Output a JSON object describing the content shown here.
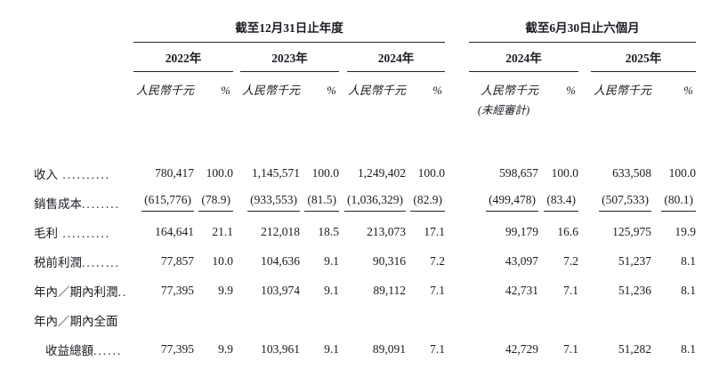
{
  "table": {
    "groups": [
      {
        "title": "截至12月31日止年度",
        "year_count": 3
      },
      {
        "title": "截至6月30日止六個月",
        "year_count": 2
      }
    ],
    "years": [
      "2022年",
      "2023年",
      "2024年",
      "2024年",
      "2025年"
    ],
    "subheaders": {
      "amount": "人民幣千元",
      "percent": "%"
    },
    "unaudited_note": "(未經審計)",
    "rows": [
      {
        "label": "收入",
        "dots": " ..........",
        "cells": [
          "780,417",
          "100.0",
          "1,145,571",
          "100.0",
          "1,249,402",
          "100.0",
          "598,657",
          "100.0",
          "633,508",
          "100.0"
        ],
        "underline": false,
        "indent": false
      },
      {
        "label": "銷售成本",
        "dots": "........",
        "cells": [
          "(615,776)",
          "(78.9)",
          "(933,553)",
          "(81.5)",
          "(1,036,329)",
          "(82.9)",
          "(499,478)",
          "(83.4)",
          "(507,533)",
          "(80.1)"
        ],
        "underline": true,
        "indent": false
      },
      {
        "label": "毛利",
        "dots": " ..........",
        "cells": [
          "164,641",
          "21.1",
          "212,018",
          "18.5",
          "213,073",
          "17.1",
          "99,179",
          "16.6",
          "125,975",
          "19.9"
        ],
        "underline": false,
        "indent": false
      },
      {
        "label": "税前利潤",
        "dots": "........",
        "cells": [
          "77,857",
          "10.0",
          "104,636",
          "9.1",
          "90,316",
          "7.2",
          "43,097",
          "7.2",
          "51,237",
          "8.1"
        ],
        "underline": false,
        "indent": false
      },
      {
        "label": "年內／期內利潤",
        "dots": "..",
        "cells": [
          "77,395",
          "9.9",
          "103,974",
          "9.1",
          "89,112",
          "7.1",
          "42,731",
          "7.1",
          "51,236",
          "8.1"
        ],
        "underline": false,
        "indent": false
      },
      {
        "label": "年內／期內全面",
        "dots": "",
        "cells": [],
        "underline": false,
        "indent": false
      },
      {
        "label": "收益總額",
        "dots": "......",
        "cells": [
          "77,395",
          "9.9",
          "103,961",
          "9.1",
          "89,091",
          "7.1",
          "42,729",
          "7.1",
          "51,282",
          "8.1"
        ],
        "underline": false,
        "indent": true
      }
    ]
  }
}
